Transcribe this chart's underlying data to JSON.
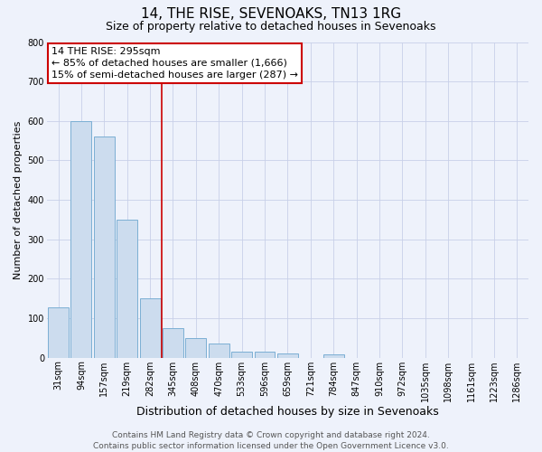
{
  "title": "14, THE RISE, SEVENOAKS, TN13 1RG",
  "subtitle": "Size of property relative to detached houses in Sevenoaks",
  "xlabel": "Distribution of detached houses by size in Sevenoaks",
  "ylabel": "Number of detached properties",
  "bar_labels": [
    "31sqm",
    "94sqm",
    "157sqm",
    "219sqm",
    "282sqm",
    "345sqm",
    "408sqm",
    "470sqm",
    "533sqm",
    "596sqm",
    "659sqm",
    "721sqm",
    "784sqm",
    "847sqm",
    "910sqm",
    "972sqm",
    "1035sqm",
    "1098sqm",
    "1161sqm",
    "1223sqm",
    "1286sqm"
  ],
  "bar_values": [
    128,
    600,
    560,
    350,
    150,
    75,
    50,
    35,
    15,
    15,
    10,
    0,
    8,
    0,
    0,
    0,
    0,
    0,
    0,
    0,
    0
  ],
  "bar_color": "#ccdcee",
  "bar_edge_color": "#7bafd4",
  "marker_line_color": "#cc0000",
  "annotation_box_text": "14 THE RISE: 295sqm\n← 85% of detached houses are smaller (1,666)\n15% of semi-detached houses are larger (287) →",
  "annotation_box_color": "#cc0000",
  "ylim": [
    0,
    800
  ],
  "yticks": [
    0,
    100,
    200,
    300,
    400,
    500,
    600,
    700,
    800
  ],
  "footer_text": "Contains HM Land Registry data © Crown copyright and database right 2024.\nContains public sector information licensed under the Open Government Licence v3.0.",
  "bg_color": "#eef2fb",
  "grid_color": "#c8d0e8",
  "title_fontsize": 11,
  "subtitle_fontsize": 9,
  "xlabel_fontsize": 9,
  "ylabel_fontsize": 8,
  "tick_fontsize": 7,
  "annotation_fontsize": 8,
  "footer_fontsize": 6.5
}
